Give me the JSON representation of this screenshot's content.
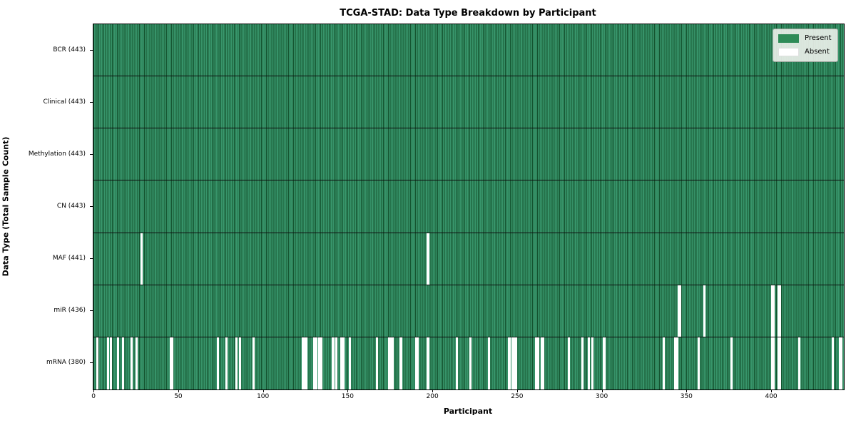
{
  "colors": {
    "present": "#2e8b57",
    "absent": "#ffffff",
    "bar_edge": "#14532f",
    "row_divider": "#0d0d0d",
    "legend_background": "#e9efe9"
  },
  "chart_data": {
    "type": "heatmap",
    "title": "TCGA-STAD: Data Type Breakdown by Participant",
    "xlabel": "Participant",
    "ylabel": "Data Type (Total Sample Count)",
    "n_participants": 443,
    "xlim": [
      -0.5,
      442.5
    ],
    "xticks": [
      0,
      50,
      100,
      150,
      200,
      250,
      300,
      350,
      400
    ],
    "grid": false,
    "legend_position": "upper right",
    "legend": [
      {
        "label": "Present",
        "color": "#2e8b57"
      },
      {
        "label": "Absent",
        "color": "#ffffff"
      }
    ],
    "rows": [
      {
        "label": "BCR (443)",
        "present_count": 443,
        "absent_participants": []
      },
      {
        "label": "Clinical (443)",
        "present_count": 443,
        "absent_participants": []
      },
      {
        "label": "Methylation (443)",
        "present_count": 443,
        "absent_participants": []
      },
      {
        "label": "CN (443)",
        "present_count": 443,
        "absent_participants": []
      },
      {
        "label": "MAF (441)",
        "present_count": 441,
        "absent_participants": [
          28,
          197
        ]
      },
      {
        "label": "miR (436)",
        "present_count": 436,
        "absent_participants": [
          345,
          346,
          360,
          400,
          401,
          404,
          405
        ]
      },
      {
        "label": "mRNA (380)",
        "present_count": 380,
        "absent_participants": [
          2,
          8,
          10,
          14,
          17,
          22,
          25,
          45,
          46,
          73,
          78,
          84,
          86,
          94,
          123,
          124,
          125,
          130,
          131,
          133,
          134,
          141,
          143,
          146,
          147,
          151,
          167,
          174,
          175,
          176,
          181,
          190,
          191,
          197,
          214,
          222,
          233,
          245,
          247,
          248,
          249,
          261,
          262,
          264,
          265,
          280,
          288,
          292,
          294,
          301,
          336,
          343,
          344,
          357,
          376,
          400,
          401,
          404,
          405,
          416,
          436,
          440,
          441
        ]
      }
    ]
  }
}
